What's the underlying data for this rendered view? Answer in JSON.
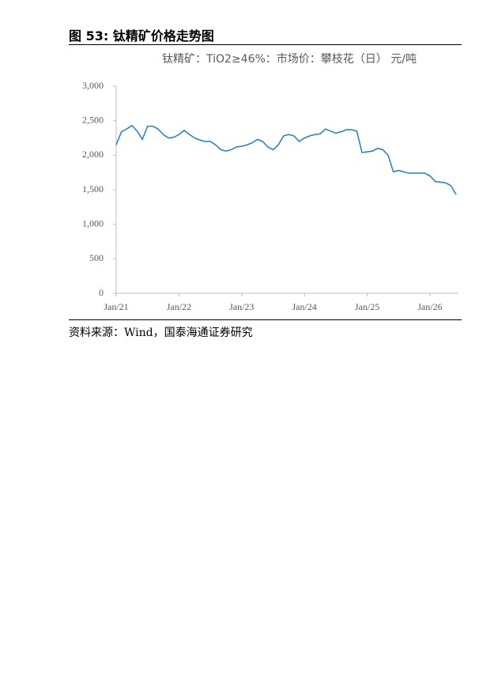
{
  "figure": {
    "title": "图 53:  钛精矿价格走势图",
    "source": "资料来源：Wind，国泰海通证券研究"
  },
  "chart_data": {
    "type": "line",
    "title": "钛精矿：TiO2≥46%：市场价：攀枝花（日） 元/吨",
    "x": [
      "2021-01",
      "2021-02",
      "2021-03",
      "2021-04",
      "2021-05",
      "2021-06",
      "2021-07",
      "2021-08",
      "2021-09",
      "2021-10",
      "2021-11",
      "2021-12",
      "2022-01",
      "2022-02",
      "2022-03",
      "2022-04",
      "2022-05",
      "2022-06",
      "2022-07",
      "2022-08",
      "2022-09",
      "2022-10",
      "2022-11",
      "2022-12",
      "2023-01",
      "2023-02",
      "2023-03",
      "2023-04",
      "2023-05",
      "2023-06",
      "2023-07",
      "2023-08",
      "2023-09",
      "2023-10",
      "2023-11",
      "2023-12",
      "2024-01",
      "2024-02",
      "2024-03",
      "2024-04",
      "2024-05",
      "2024-06",
      "2024-07",
      "2024-08",
      "2024-09",
      "2024-10",
      "2024-11",
      "2024-12",
      "2025-01",
      "2025-02",
      "2025-03",
      "2025-04",
      "2025-05",
      "2025-06",
      "2025-07",
      "2025-08",
      "2025-09",
      "2025-10",
      "2025-11",
      "2025-12",
      "2026-01",
      "2026-02",
      "2026-03",
      "2026-04",
      "2026-05",
      "2026-06"
    ],
    "series": [
      {
        "name": "钛精矿价格",
        "color": "#1f7fc4",
        "values": [
          2150,
          2340,
          2380,
          2430,
          2350,
          2230,
          2420,
          2420,
          2380,
          2300,
          2250,
          2260,
          2300,
          2360,
          2300,
          2250,
          2220,
          2200,
          2200,
          2150,
          2080,
          2060,
          2080,
          2120,
          2130,
          2150,
          2180,
          2230,
          2200,
          2120,
          2080,
          2150,
          2280,
          2300,
          2280,
          2200,
          2250,
          2280,
          2300,
          2310,
          2380,
          2350,
          2320,
          2340,
          2370,
          2370,
          2350,
          2040,
          2050,
          2060,
          2100,
          2080,
          2000,
          1760,
          1780,
          1760,
          1740,
          1740,
          1740,
          1740,
          1700,
          1620,
          1610,
          1600,
          1560,
          1430
        ]
      }
    ],
    "xlim": [
      "2021-01",
      "2026-06"
    ],
    "xticks": [
      {
        "value": "2021-01",
        "label": "Jan/21"
      },
      {
        "value": "2022-01",
        "label": "Jan/22"
      },
      {
        "value": "2023-01",
        "label": "Jan/23"
      },
      {
        "value": "2024-01",
        "label": "Jan/24"
      },
      {
        "value": "2025-01",
        "label": "Jan/25"
      },
      {
        "value": "2026-01",
        "label": "Jan/26"
      }
    ],
    "ylim": [
      0,
      3000
    ],
    "yticks": [
      0,
      500,
      {
        "value": 1000,
        "label": "1,000"
      },
      {
        "value": 1500,
        "label": "1,500"
      },
      {
        "value": 2000,
        "label": "2,000"
      },
      {
        "value": 2500,
        "label": "2,500"
      },
      {
        "value": 3000,
        "label": "3,000"
      }
    ],
    "grid": false
  }
}
